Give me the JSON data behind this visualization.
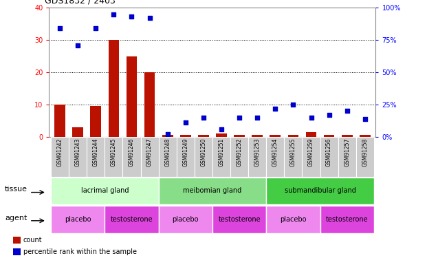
{
  "title": "GDS1832 / 2403",
  "samples": [
    "GSM91242",
    "GSM91243",
    "GSM91244",
    "GSM91245",
    "GSM91246",
    "GSM91247",
    "GSM91248",
    "GSM91249",
    "GSM91250",
    "GSM91251",
    "GSM91252",
    "GSM91253",
    "GSM91254",
    "GSM91255",
    "GSM91259",
    "GSM91256",
    "GSM91257",
    "GSM91258"
  ],
  "counts": [
    10,
    3,
    9.5,
    30,
    25,
    20,
    0.5,
    0.5,
    0.5,
    1,
    0.5,
    0.5,
    0.5,
    0.5,
    1.5,
    0.5,
    0.5,
    0.5
  ],
  "percentiles": [
    84,
    71,
    84,
    95,
    93,
    92,
    2,
    11,
    15,
    6,
    15,
    15,
    22,
    25,
    15,
    17,
    20,
    14
  ],
  "bar_color": "#bb1100",
  "dot_color": "#0000cc",
  "ylim_left": [
    0,
    40
  ],
  "ylim_right": [
    0,
    100
  ],
  "yticks_left": [
    0,
    10,
    20,
    30,
    40
  ],
  "yticks_right": [
    0,
    25,
    50,
    75,
    100
  ],
  "tissue_groups": [
    {
      "label": "lacrimal gland",
      "start": 0,
      "end": 6,
      "color": "#ccffcc"
    },
    {
      "label": "meibomian gland",
      "start": 6,
      "end": 12,
      "color": "#88dd88"
    },
    {
      "label": "submandibular gland",
      "start": 12,
      "end": 18,
      "color": "#44cc44"
    }
  ],
  "agent_groups": [
    {
      "label": "placebo",
      "start": 0,
      "end": 3,
      "color": "#ee88ee"
    },
    {
      "label": "testosterone",
      "start": 3,
      "end": 6,
      "color": "#dd44dd"
    },
    {
      "label": "placebo",
      "start": 6,
      "end": 9,
      "color": "#ee88ee"
    },
    {
      "label": "testosterone",
      "start": 9,
      "end": 12,
      "color": "#dd44dd"
    },
    {
      "label": "placebo",
      "start": 12,
      "end": 15,
      "color": "#ee88ee"
    },
    {
      "label": "testosterone",
      "start": 15,
      "end": 18,
      "color": "#dd44dd"
    }
  ],
  "legend_count_color": "#bb1100",
  "legend_dot_color": "#0000cc",
  "tissue_label": "tissue",
  "agent_label": "agent",
  "sample_bg_color": "#cccccc",
  "gridline_color": "#000000"
}
